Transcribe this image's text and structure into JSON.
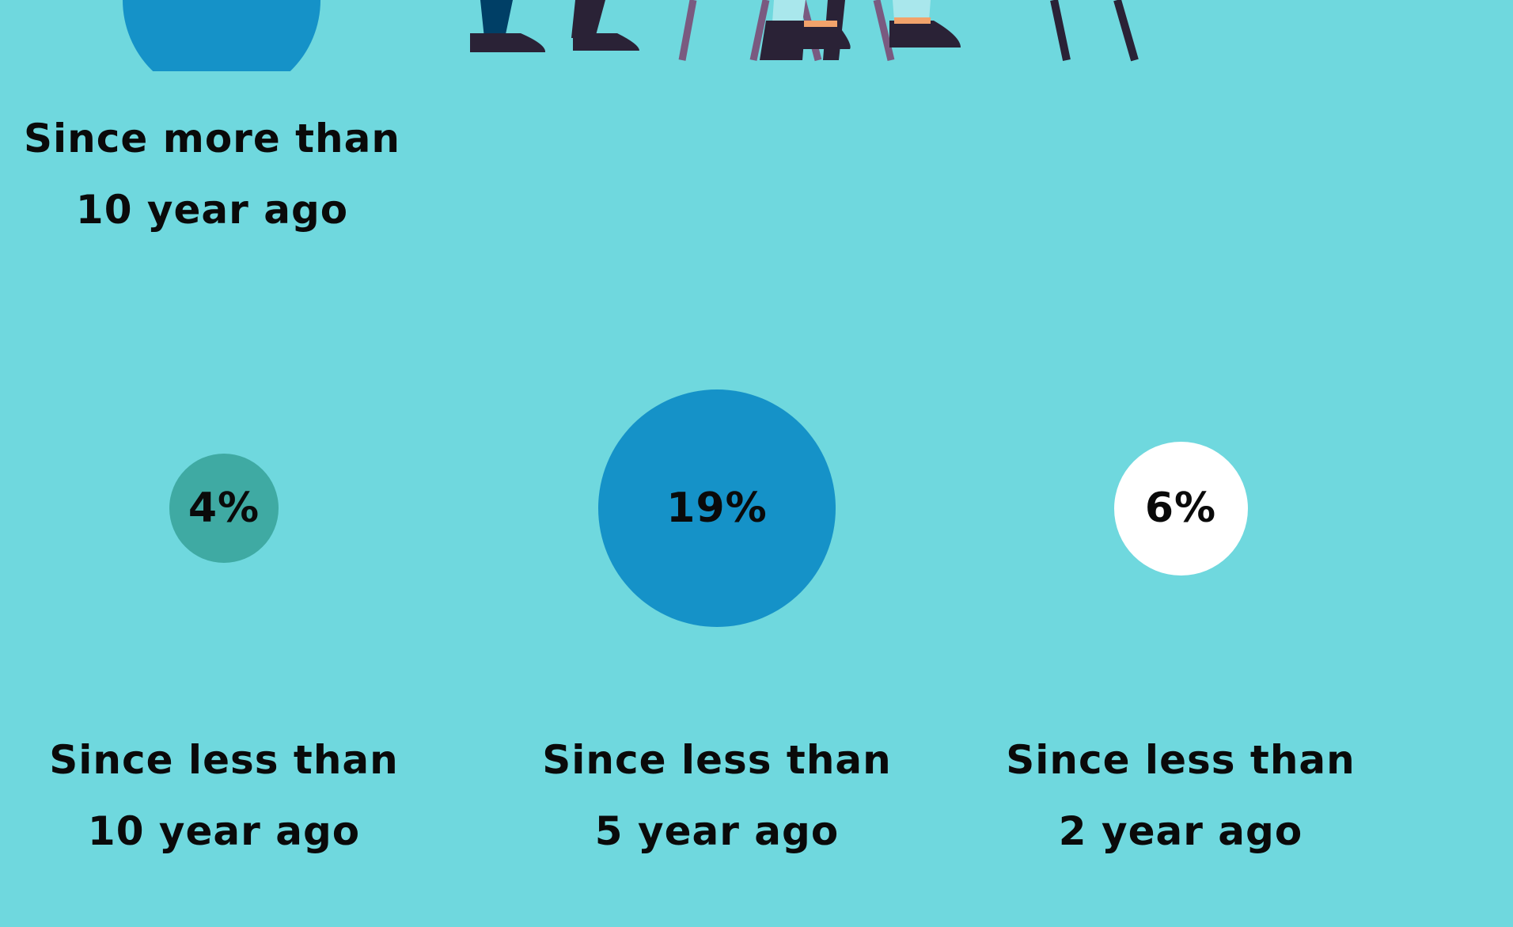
{
  "colors": {
    "background": "#6fd8de",
    "bubble_teal": "#3faaa3",
    "bubble_blue": "#1592c8",
    "bubble_white": "#ffffff",
    "text": "#0a0a0a"
  },
  "categories": [
    {
      "label_line1": "Since more than",
      "label_line2": "10 year ago",
      "value_text": "",
      "color": "#1592c8"
    },
    {
      "label_line1": "Since less than",
      "label_line2": "10 year ago",
      "value_text": "4%",
      "color": "#3faaa3"
    },
    {
      "label_line1": "Since less than",
      "label_line2": "5 year ago",
      "value_text": "19%",
      "color": "#1592c8"
    },
    {
      "label_line1": "Since less than",
      "label_line2": "2 year ago",
      "value_text": "6%",
      "color": "#ffffff"
    }
  ],
  "chart_data": {
    "type": "bubble",
    "categories": [
      "Since more than 10 year ago",
      "Since less than 10 year ago",
      "Since less than 5 year ago",
      "Since less than 2 year ago"
    ],
    "values": [
      null,
      4,
      19,
      6
    ],
    "value_labels": [
      "",
      "4%",
      "19%",
      "6%"
    ],
    "unit": "%",
    "colors": [
      "#1592c8",
      "#3faaa3",
      "#1592c8",
      "#ffffff"
    ],
    "title": "",
    "xlabel": "",
    "ylabel": "",
    "legend": "none",
    "grid": false,
    "note": ""
  },
  "illustration": {
    "subject": "people-sitting-on-chairs",
    "icons": [
      "person-legs-icon",
      "chair-icon"
    ]
  }
}
